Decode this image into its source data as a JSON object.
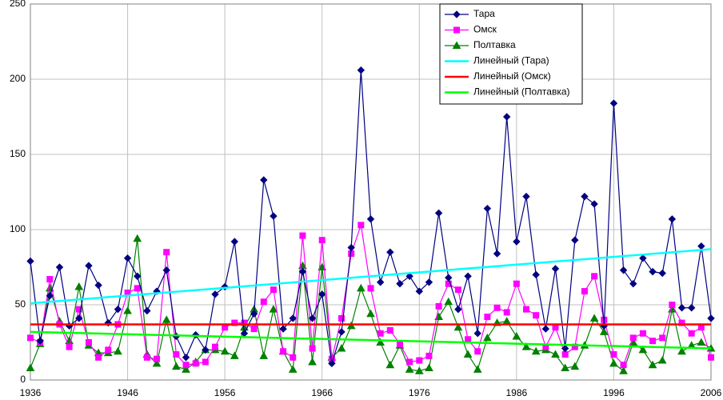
{
  "chart_data": {
    "type": "line",
    "x": [
      1936,
      1937,
      1938,
      1939,
      1940,
      1941,
      1942,
      1943,
      1944,
      1945,
      1946,
      1947,
      1948,
      1949,
      1950,
      1951,
      1952,
      1953,
      1954,
      1955,
      1956,
      1957,
      1958,
      1959,
      1960,
      1961,
      1962,
      1963,
      1964,
      1965,
      1966,
      1967,
      1968,
      1969,
      1970,
      1971,
      1972,
      1973,
      1974,
      1975,
      1976,
      1977,
      1978,
      1979,
      1980,
      1981,
      1982,
      1983,
      1984,
      1985,
      1986,
      1987,
      1988,
      1989,
      1990,
      1991,
      1992,
      1993,
      1994,
      1995,
      1996,
      1997,
      1998,
      1999,
      2000,
      2001,
      2002,
      2003,
      2004,
      2005,
      2006
    ],
    "xlim": [
      1936,
      2006
    ],
    "xticks": [
      1936,
      1946,
      1956,
      1966,
      1976,
      1986,
      1996,
      2006
    ],
    "ylim": [
      0,
      250
    ],
    "yticks": [
      0,
      50,
      100,
      150,
      200,
      250
    ],
    "grid": true,
    "legend": "top-right",
    "series": [
      {
        "name": "Тара",
        "color": "#000080",
        "marker": "diamond",
        "values": [
          79,
          26,
          56,
          75,
          36,
          41,
          76,
          63,
          38,
          47,
          81,
          69,
          46,
          59,
          73,
          29,
          15,
          30,
          20,
          57,
          62,
          92,
          31,
          44,
          133,
          109,
          34,
          41,
          72,
          41,
          57,
          11,
          32,
          88,
          206,
          107,
          65,
          85,
          64,
          69,
          59,
          65,
          111,
          68,
          47,
          69,
          31,
          114,
          84,
          175,
          92,
          122,
          70,
          34,
          74,
          21,
          93,
          122,
          117,
          36,
          184,
          73,
          64,
          81,
          72,
          71,
          107,
          48,
          48,
          89,
          41
        ]
      },
      {
        "name": "Омск",
        "color": "#ff00ff",
        "marker": "square",
        "values": [
          28,
          25,
          67,
          37,
          22,
          47,
          25,
          15,
          20,
          37,
          58,
          61,
          15,
          14,
          85,
          17,
          10,
          11,
          12,
          22,
          35,
          38,
          38,
          34,
          52,
          60,
          19,
          15,
          96,
          21,
          93,
          14,
          41,
          84,
          103,
          61,
          31,
          33,
          24,
          12,
          13,
          16,
          49,
          64,
          60,
          27,
          19,
          42,
          48,
          45,
          64,
          47,
          43,
          22,
          35,
          17,
          22,
          59,
          69,
          40,
          17,
          10,
          28,
          31,
          26,
          28,
          50,
          38,
          31,
          35,
          15
        ]
      },
      {
        "name": "Полтавка",
        "color": "#008000",
        "marker": "triangle",
        "values": [
          8,
          24,
          61,
          39,
          26,
          62,
          23,
          18,
          18,
          19,
          46,
          94,
          17,
          11,
          40,
          9,
          7,
          12,
          20,
          20,
          19,
          16,
          35,
          47,
          16,
          47,
          19,
          7,
          76,
          12,
          75,
          15,
          21,
          36,
          61,
          44,
          25,
          10,
          23,
          7,
          6,
          8,
          42,
          52,
          35,
          17,
          7,
          28,
          38,
          39,
          29,
          22,
          19,
          20,
          17,
          8,
          9,
          23,
          41,
          32,
          11,
          6,
          25,
          20,
          10,
          13,
          47,
          19,
          23,
          25,
          21
        ]
      },
      {
        "name": "Линейный (Тара)",
        "color": "#00ffff",
        "x": [
          1936,
          2006
        ],
        "values": [
          51,
          87
        ]
      },
      {
        "name": "Линейный (Омск)",
        "color": "#ff0000",
        "x": [
          1936,
          2006
        ],
        "values": [
          37,
          37
        ]
      },
      {
        "name": "Линейный (Полтавка)",
        "color": "#00ff00",
        "x": [
          1936,
          2006
        ],
        "values": [
          32,
          21
        ]
      }
    ]
  }
}
